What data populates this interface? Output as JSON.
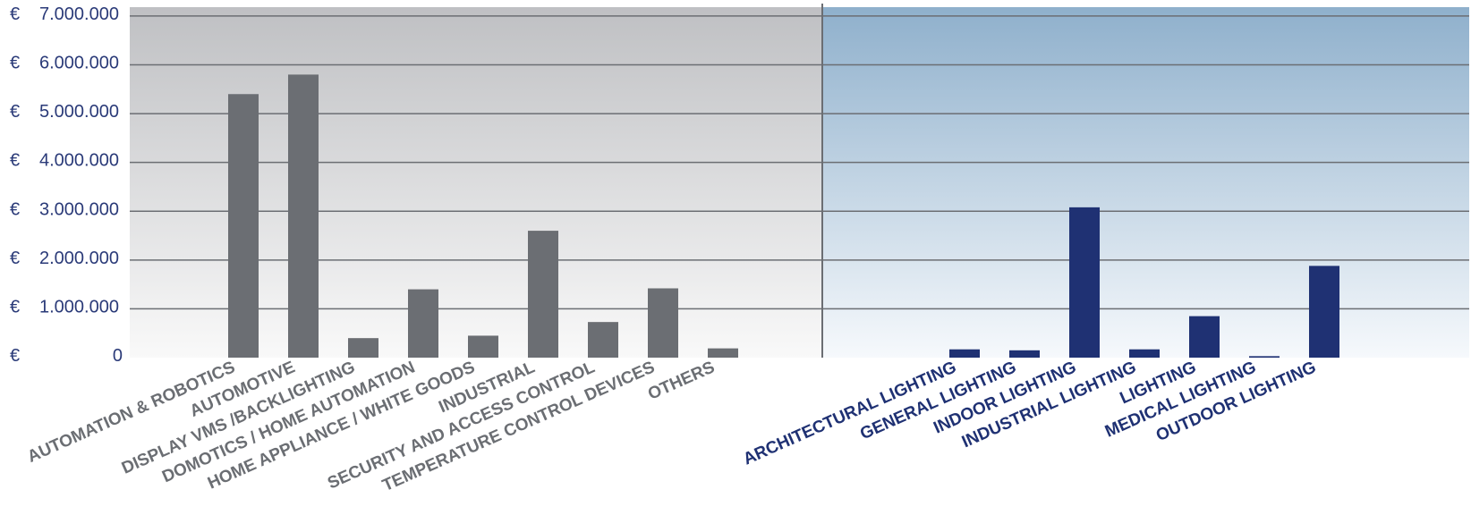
{
  "chart_data": {
    "type": "bar",
    "currency_symbol": "€",
    "y_ticks": [
      {
        "value": 0,
        "label": "0"
      },
      {
        "value": 1000000,
        "label": "1.000.000"
      },
      {
        "value": 2000000,
        "label": "2.000.000"
      },
      {
        "value": 3000000,
        "label": "3.000.000"
      },
      {
        "value": 4000000,
        "label": "4.000.000"
      },
      {
        "value": 5000000,
        "label": "5.000.000"
      },
      {
        "value": 6000000,
        "label": "6.000.000"
      },
      {
        "value": 7000000,
        "label": "7.000.000"
      }
    ],
    "ylim": [
      0,
      7200000
    ],
    "grid": true,
    "panels": [
      {
        "color": "#6b6e73",
        "label_color": "#6b6e73",
        "background": [
          "#bfc0c3",
          "#f9f9f9"
        ],
        "categories": [
          "AUTOMATION & ROBOTICS",
          "AUTOMOTIVE",
          "DISPLAY VMS /BACKLIGHTING",
          "DOMOTICS / HOME AUTOMATION",
          "HOME APPLIANCE / WHITE GOODS",
          "INDUSTRIAL",
          "SECURITY AND ACCESS CONTROL",
          "TEMPERATURE CONTROL DEVICES",
          "OTHERS"
        ],
        "values": [
          5400000,
          5800000,
          400000,
          1400000,
          450000,
          2600000,
          730000,
          1420000,
          190000
        ]
      },
      {
        "color": "#1f3173",
        "label_color": "#1f3173",
        "background": [
          "#8fb0cc",
          "#f6f9fc"
        ],
        "categories": [
          "ARCHITECTURAL LIGHTING",
          "GENERAL LIGHTING",
          "INDOOR LIGHTING",
          "INDUSTRIAL LIGHTING",
          "LIGHTING",
          "MEDICAL LIGHTING",
          "OUTDOOR LIGHTING"
        ],
        "values": [
          170000,
          150000,
          3080000,
          170000,
          850000,
          30000,
          1880000
        ]
      }
    ]
  }
}
